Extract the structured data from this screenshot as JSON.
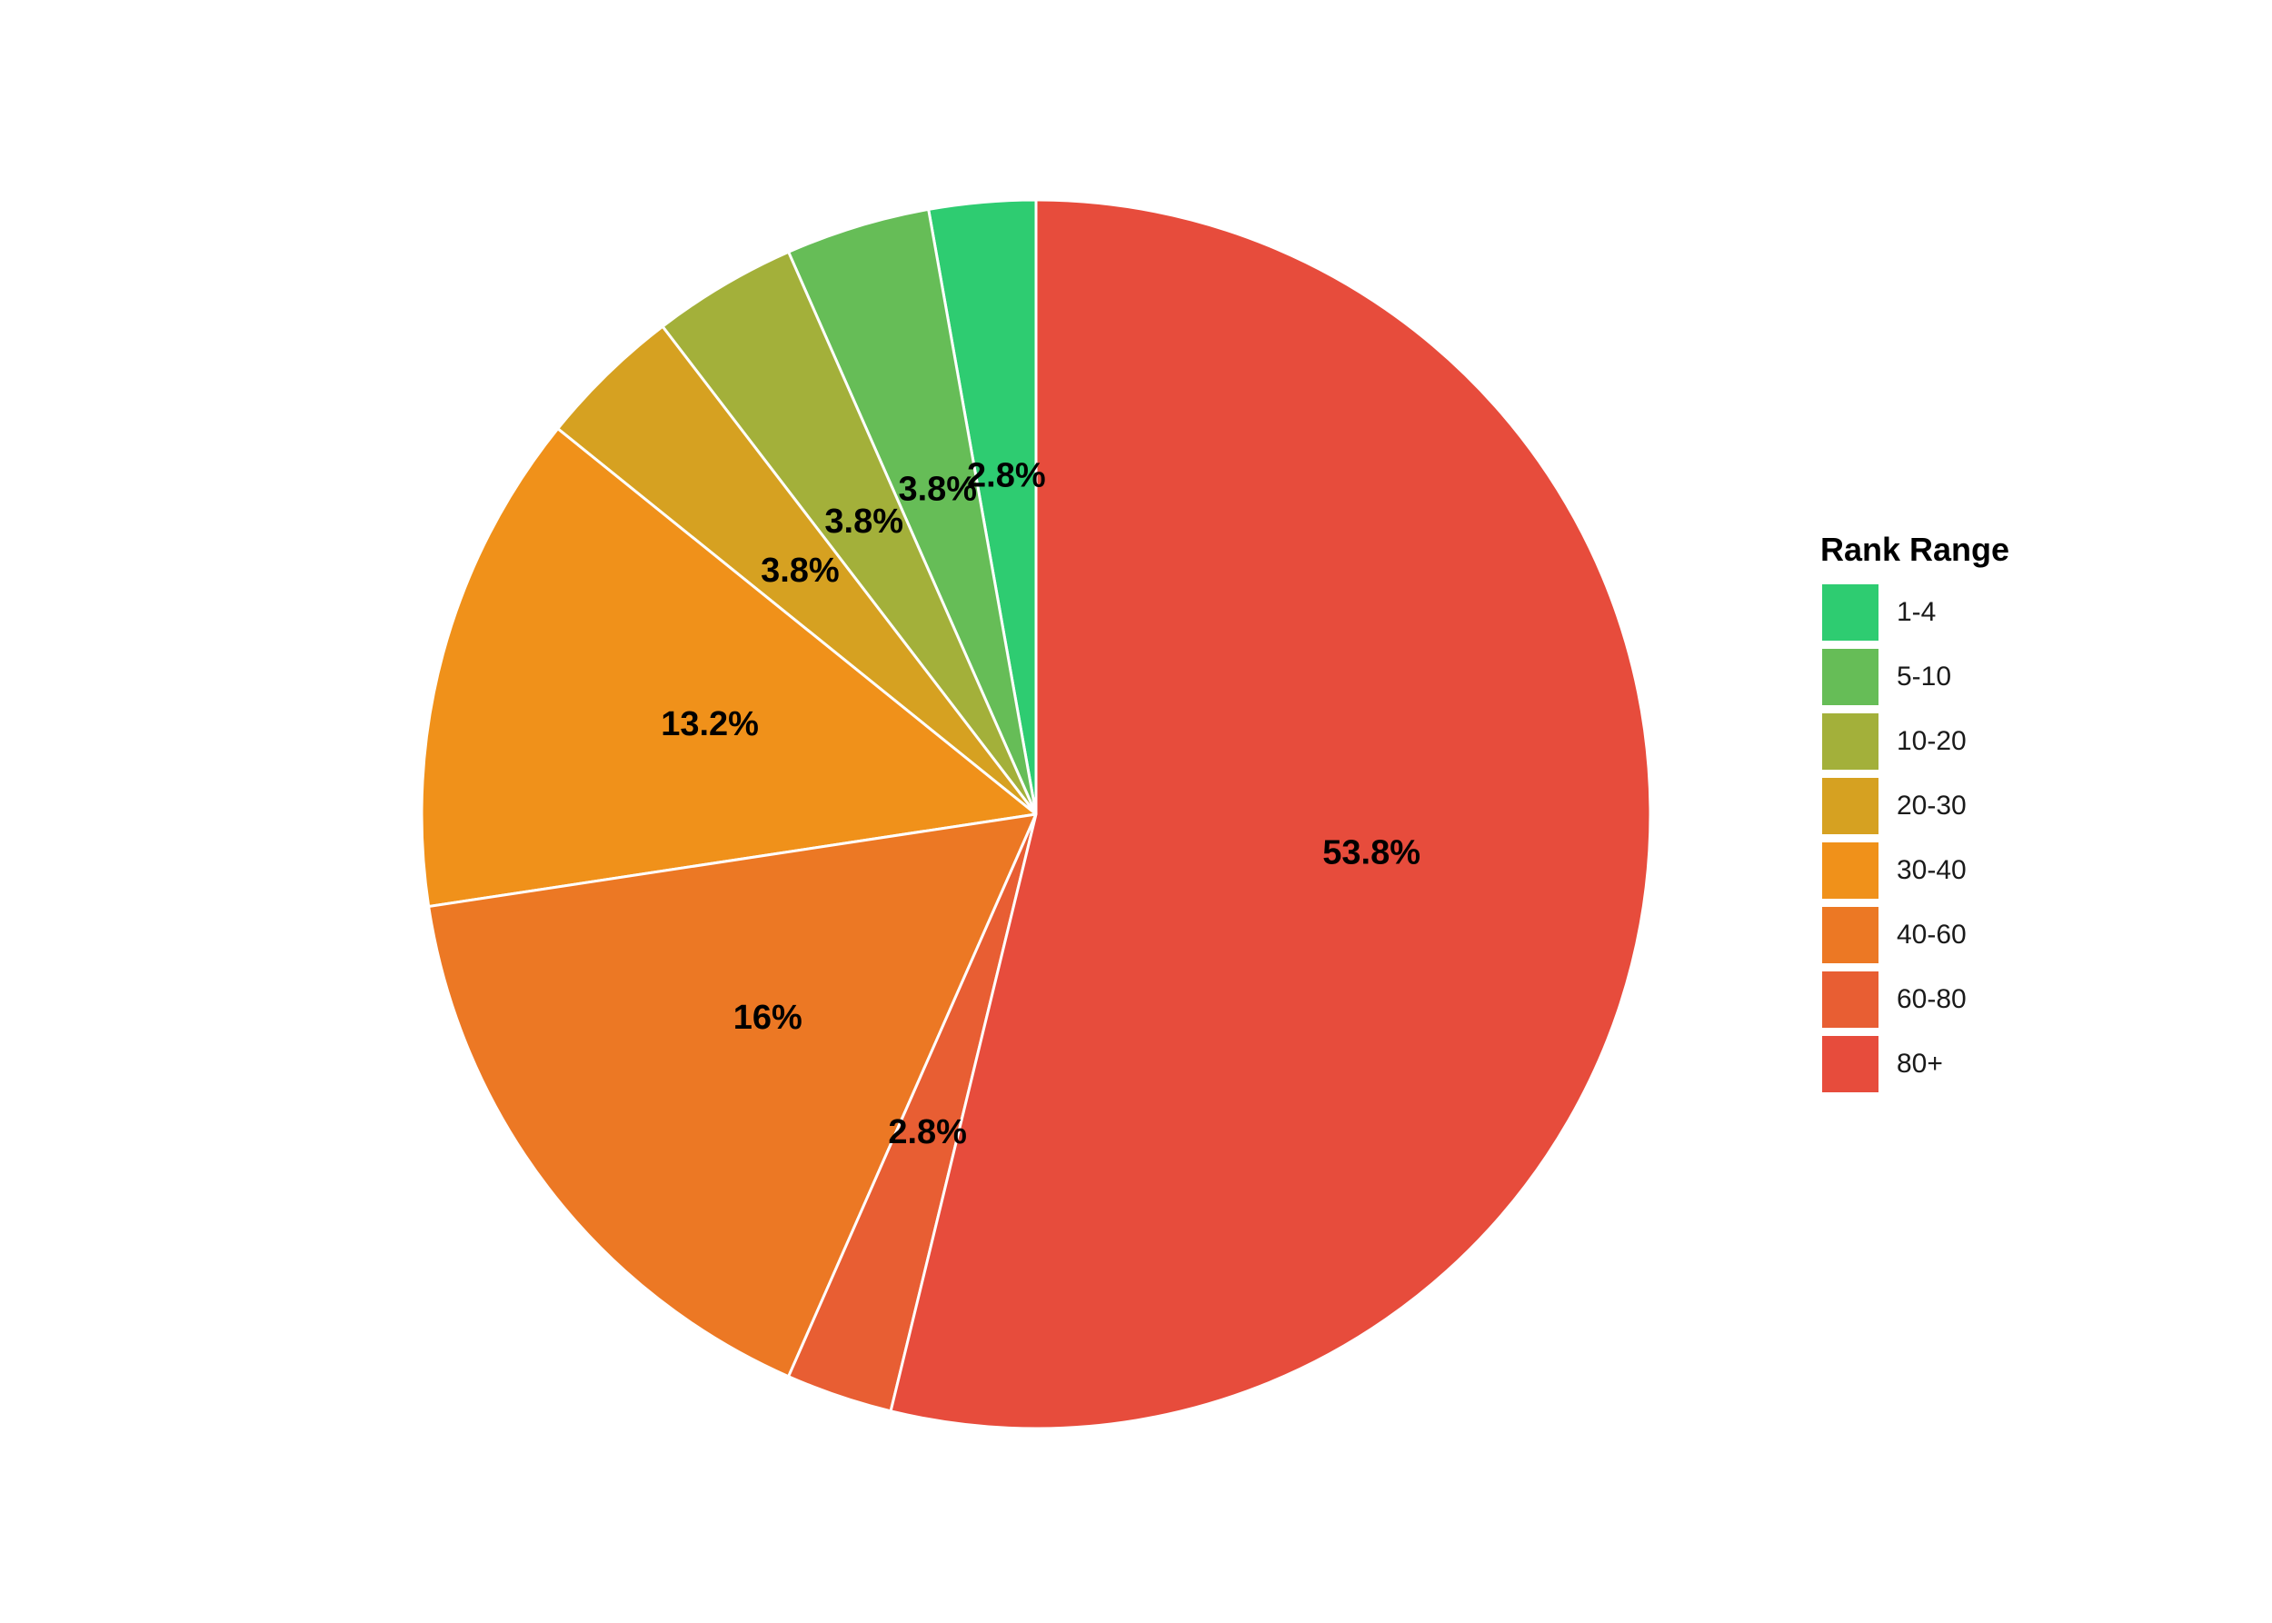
{
  "chart_data": {
    "type": "pie",
    "title": "",
    "legend": {
      "title": "Rank Range",
      "position": "right"
    },
    "categories": [
      "1-4",
      "5-10",
      "10-20",
      "20-30",
      "30-40",
      "40-60",
      "60-80",
      "80+"
    ],
    "values": [
      2.8,
      3.8,
      3.8,
      3.8,
      13.2,
      16,
      2.8,
      53.8
    ],
    "labels": [
      "2.8%",
      "3.8%",
      "3.8%",
      "3.8%",
      "13.2%",
      "16%",
      "2.8%",
      "53.8%"
    ],
    "colors": [
      "#2ECC71",
      "#66BD57",
      "#A3B03A",
      "#D6A121",
      "#F0911A",
      "#EC7824",
      "#E85E33",
      "#E74C3C"
    ],
    "direction": "counterclockwise from 12 o'clock"
  }
}
